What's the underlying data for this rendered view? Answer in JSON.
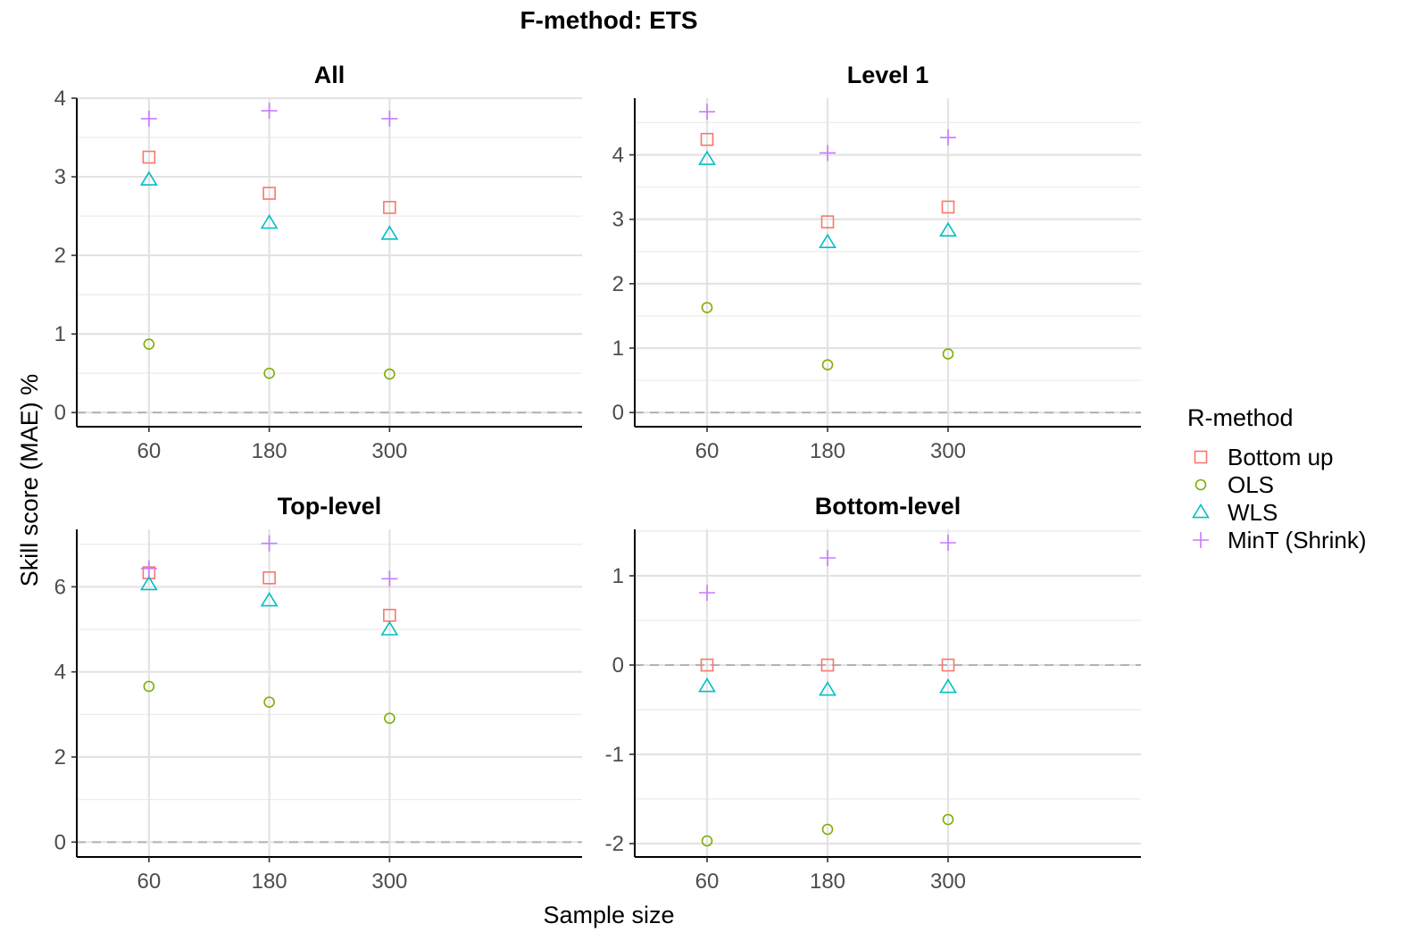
{
  "title": "F-method: ETS",
  "xlabel": "Sample size",
  "ylabel": "Skill score (MAE) %",
  "legend": {
    "title": "R-method",
    "placement": "right",
    "items": [
      {
        "name": "Bottom up",
        "shape": "square",
        "color": "#F8766D"
      },
      {
        "name": "OLS",
        "shape": "circle",
        "color": "#7CAE00"
      },
      {
        "name": "WLS",
        "shape": "triangle",
        "color": "#00BFC4"
      },
      {
        "name": "MinT (Shrink)",
        "shape": "plus",
        "color": "#C77CFF"
      }
    ]
  },
  "chart_data": [
    {
      "type": "scatter",
      "title": "All",
      "categories": [
        "60",
        "180",
        "300"
      ],
      "ylim": [
        -0.18,
        4.0
      ],
      "yticks": [
        0,
        1,
        2,
        3,
        4
      ],
      "ytick_labels": [
        "0",
        "1",
        "2",
        "3",
        "4"
      ],
      "reference_line": 0,
      "series": [
        {
          "name": "Bottom up",
          "values": [
            3.25,
            2.79,
            2.61
          ]
        },
        {
          "name": "OLS",
          "values": [
            0.87,
            0.5,
            0.49
          ]
        },
        {
          "name": "WLS",
          "values": [
            2.96,
            2.41,
            2.27
          ]
        },
        {
          "name": "MinT (Shrink)",
          "values": [
            3.74,
            3.84,
            3.74
          ]
        }
      ]
    },
    {
      "type": "scatter",
      "title": "Level 1",
      "categories": [
        "60",
        "180",
        "300"
      ],
      "ylim": [
        -0.22,
        4.88
      ],
      "yticks": [
        0,
        1,
        2,
        3,
        4
      ],
      "ytick_labels": [
        "0",
        "1",
        "2",
        "3",
        "4"
      ],
      "reference_line": 0,
      "series": [
        {
          "name": "Bottom up",
          "values": [
            4.24,
            2.96,
            3.19
          ]
        },
        {
          "name": "OLS",
          "values": [
            1.63,
            0.74,
            0.91
          ]
        },
        {
          "name": "WLS",
          "values": [
            3.93,
            2.64,
            2.82
          ]
        },
        {
          "name": "MinT (Shrink)",
          "values": [
            4.67,
            4.03,
            4.27
          ]
        }
      ]
    },
    {
      "type": "scatter",
      "title": "Top-level",
      "categories": [
        "60",
        "180",
        "300"
      ],
      "ylim": [
        -0.35,
        7.35
      ],
      "yticks": [
        0,
        2,
        4,
        6
      ],
      "ytick_labels": [
        "0",
        "2",
        "4",
        "6"
      ],
      "reference_line": 0,
      "series": [
        {
          "name": "Bottom up",
          "values": [
            6.33,
            6.21,
            5.33
          ]
        },
        {
          "name": "OLS",
          "values": [
            3.66,
            3.29,
            2.91
          ]
        },
        {
          "name": "WLS",
          "values": [
            6.05,
            5.67,
            4.99
          ]
        },
        {
          "name": "MinT (Shrink)",
          "values": [
            6.43,
            7.02,
            6.19
          ]
        }
      ]
    },
    {
      "type": "scatter",
      "title": "Bottom-level",
      "categories": [
        "60",
        "180",
        "300"
      ],
      "ylim": [
        -2.15,
        1.52
      ],
      "yticks": [
        -2,
        -1,
        0,
        1
      ],
      "ytick_labels": [
        "-2",
        "-1",
        "0",
        "1"
      ],
      "reference_line": 0,
      "series": [
        {
          "name": "Bottom up",
          "values": [
            0.0,
            0.0,
            0.0
          ]
        },
        {
          "name": "OLS",
          "values": [
            -1.97,
            -1.84,
            -1.73
          ]
        },
        {
          "name": "WLS",
          "values": [
            -0.24,
            -0.28,
            -0.25
          ]
        },
        {
          "name": "MinT (Shrink)",
          "values": [
            0.81,
            1.2,
            1.37
          ]
        }
      ]
    }
  ]
}
